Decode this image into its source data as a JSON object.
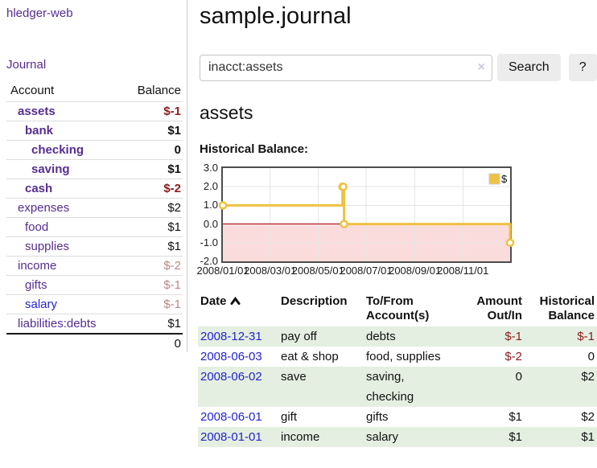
{
  "sidebar": {
    "app_title": "hledger-web",
    "nav_journal": "Journal",
    "accounts_header": {
      "account": "Account",
      "balance": "Balance"
    },
    "accounts": [
      {
        "name": "assets",
        "depth": 1,
        "bold": true,
        "link": "visited",
        "balance": "$-1",
        "balance_style": "neg-bold"
      },
      {
        "name": "bank",
        "depth": 2,
        "bold": true,
        "link": "visited",
        "balance": "$1",
        "balance_style": "bold"
      },
      {
        "name": "checking",
        "depth": 3,
        "bold": true,
        "link": "visited",
        "balance": "0",
        "balance_style": "bold"
      },
      {
        "name": "saving",
        "depth": 3,
        "bold": true,
        "link": "visited",
        "balance": "$1",
        "balance_style": "bold"
      },
      {
        "name": "cash",
        "depth": 2,
        "bold": true,
        "link": "visited",
        "balance": "$-2",
        "balance_style": "neg-bold"
      },
      {
        "name": "expenses",
        "depth": 1,
        "bold": false,
        "link": "visited",
        "balance": "$2",
        "balance_style": "plain"
      },
      {
        "name": "food",
        "depth": 2,
        "bold": false,
        "link": "visited",
        "balance": "$1",
        "balance_style": "plain"
      },
      {
        "name": "supplies",
        "depth": 2,
        "bold": false,
        "link": "visited",
        "balance": "$1",
        "balance_style": "plain"
      },
      {
        "name": "income",
        "depth": 1,
        "bold": false,
        "link": "visited",
        "balance": "$-2",
        "balance_style": "neg-dim"
      },
      {
        "name": "gifts",
        "depth": 2,
        "bold": false,
        "link": "visited",
        "balance": "$-1",
        "balance_style": "neg-dim"
      },
      {
        "name": "salary",
        "depth": 2,
        "bold": false,
        "link": "unvisited",
        "balance": "$-1",
        "balance_style": "neg-dim"
      },
      {
        "name": "liabilities:debts",
        "depth": 1,
        "bold": false,
        "link": "visited",
        "balance": "$1",
        "balance_style": "plain"
      }
    ],
    "total": "0"
  },
  "main": {
    "title": "sample.journal",
    "search": {
      "query": "inacct:assets",
      "clear_icon": "×",
      "button_label": "Search",
      "help_label": "?"
    },
    "account_heading": "assets"
  },
  "chart_data": {
    "type": "line",
    "title": "Historical Balance:",
    "step": true,
    "series": [
      {
        "name": "$",
        "color": "#edc240",
        "points": [
          [
            "2008-01-01",
            1
          ],
          [
            "2008-06-01",
            2
          ],
          [
            "2008-06-02",
            2
          ],
          [
            "2008-06-03",
            0
          ],
          [
            "2008-12-31",
            -1
          ]
        ]
      }
    ],
    "x_range": [
      "2008-01-01",
      "2008-12-31"
    ],
    "x_tick_labels": [
      "2008/01/01",
      "2008/03/01",
      "2008/05/01",
      "2008/07/01",
      "2008/09/01",
      "2008/11/01"
    ],
    "y_tick_labels": [
      "3.0",
      "2.0",
      "1.0",
      "0.0",
      "-1.0",
      "-2.0"
    ],
    "ylim": [
      -2,
      3
    ],
    "grid": true,
    "legend": {
      "label": "$",
      "position": "top-right"
    },
    "zero_line_color": "#a00000",
    "negative_region_color": "#fbdcdc",
    "grid_color": "#e4e4e4",
    "border_color": "#4d4d4d"
  },
  "transactions": {
    "columns": [
      {
        "line1": "Date",
        "line2": "",
        "sorted": "asc"
      },
      {
        "line1": "Description",
        "line2": ""
      },
      {
        "line1": "To/From",
        "line2": "Account(s)"
      },
      {
        "line1": "Amount",
        "line2": "Out/In"
      },
      {
        "line1": "Historical",
        "line2": "Balance"
      }
    ],
    "rows": [
      {
        "date": "2008-12-31",
        "description": "pay off",
        "accounts": "debts",
        "amount": "$-1",
        "balance": "$-1"
      },
      {
        "date": "2008-06-03",
        "description": "eat & shop",
        "accounts": "food, supplies",
        "amount": "$-2",
        "balance": "0"
      },
      {
        "date": "2008-06-02",
        "description": "save",
        "accounts": "saving, checking",
        "amount": "0",
        "balance": "$2"
      },
      {
        "date": "2008-06-01",
        "description": "gift",
        "accounts": "gifts",
        "amount": "$1",
        "balance": "$2"
      },
      {
        "date": "2008-01-01",
        "description": "income",
        "accounts": "salary",
        "amount": "$1",
        "balance": "$1"
      }
    ]
  },
  "colors": {
    "link_purple": "#552d90",
    "link_blue": "#2323d2",
    "negative_dark_red": "#8c1c1c",
    "negative_dim_rose": "#bf8484",
    "row_stripe_green": "#e4efe1",
    "chart_series_yellow": "#edc240"
  }
}
